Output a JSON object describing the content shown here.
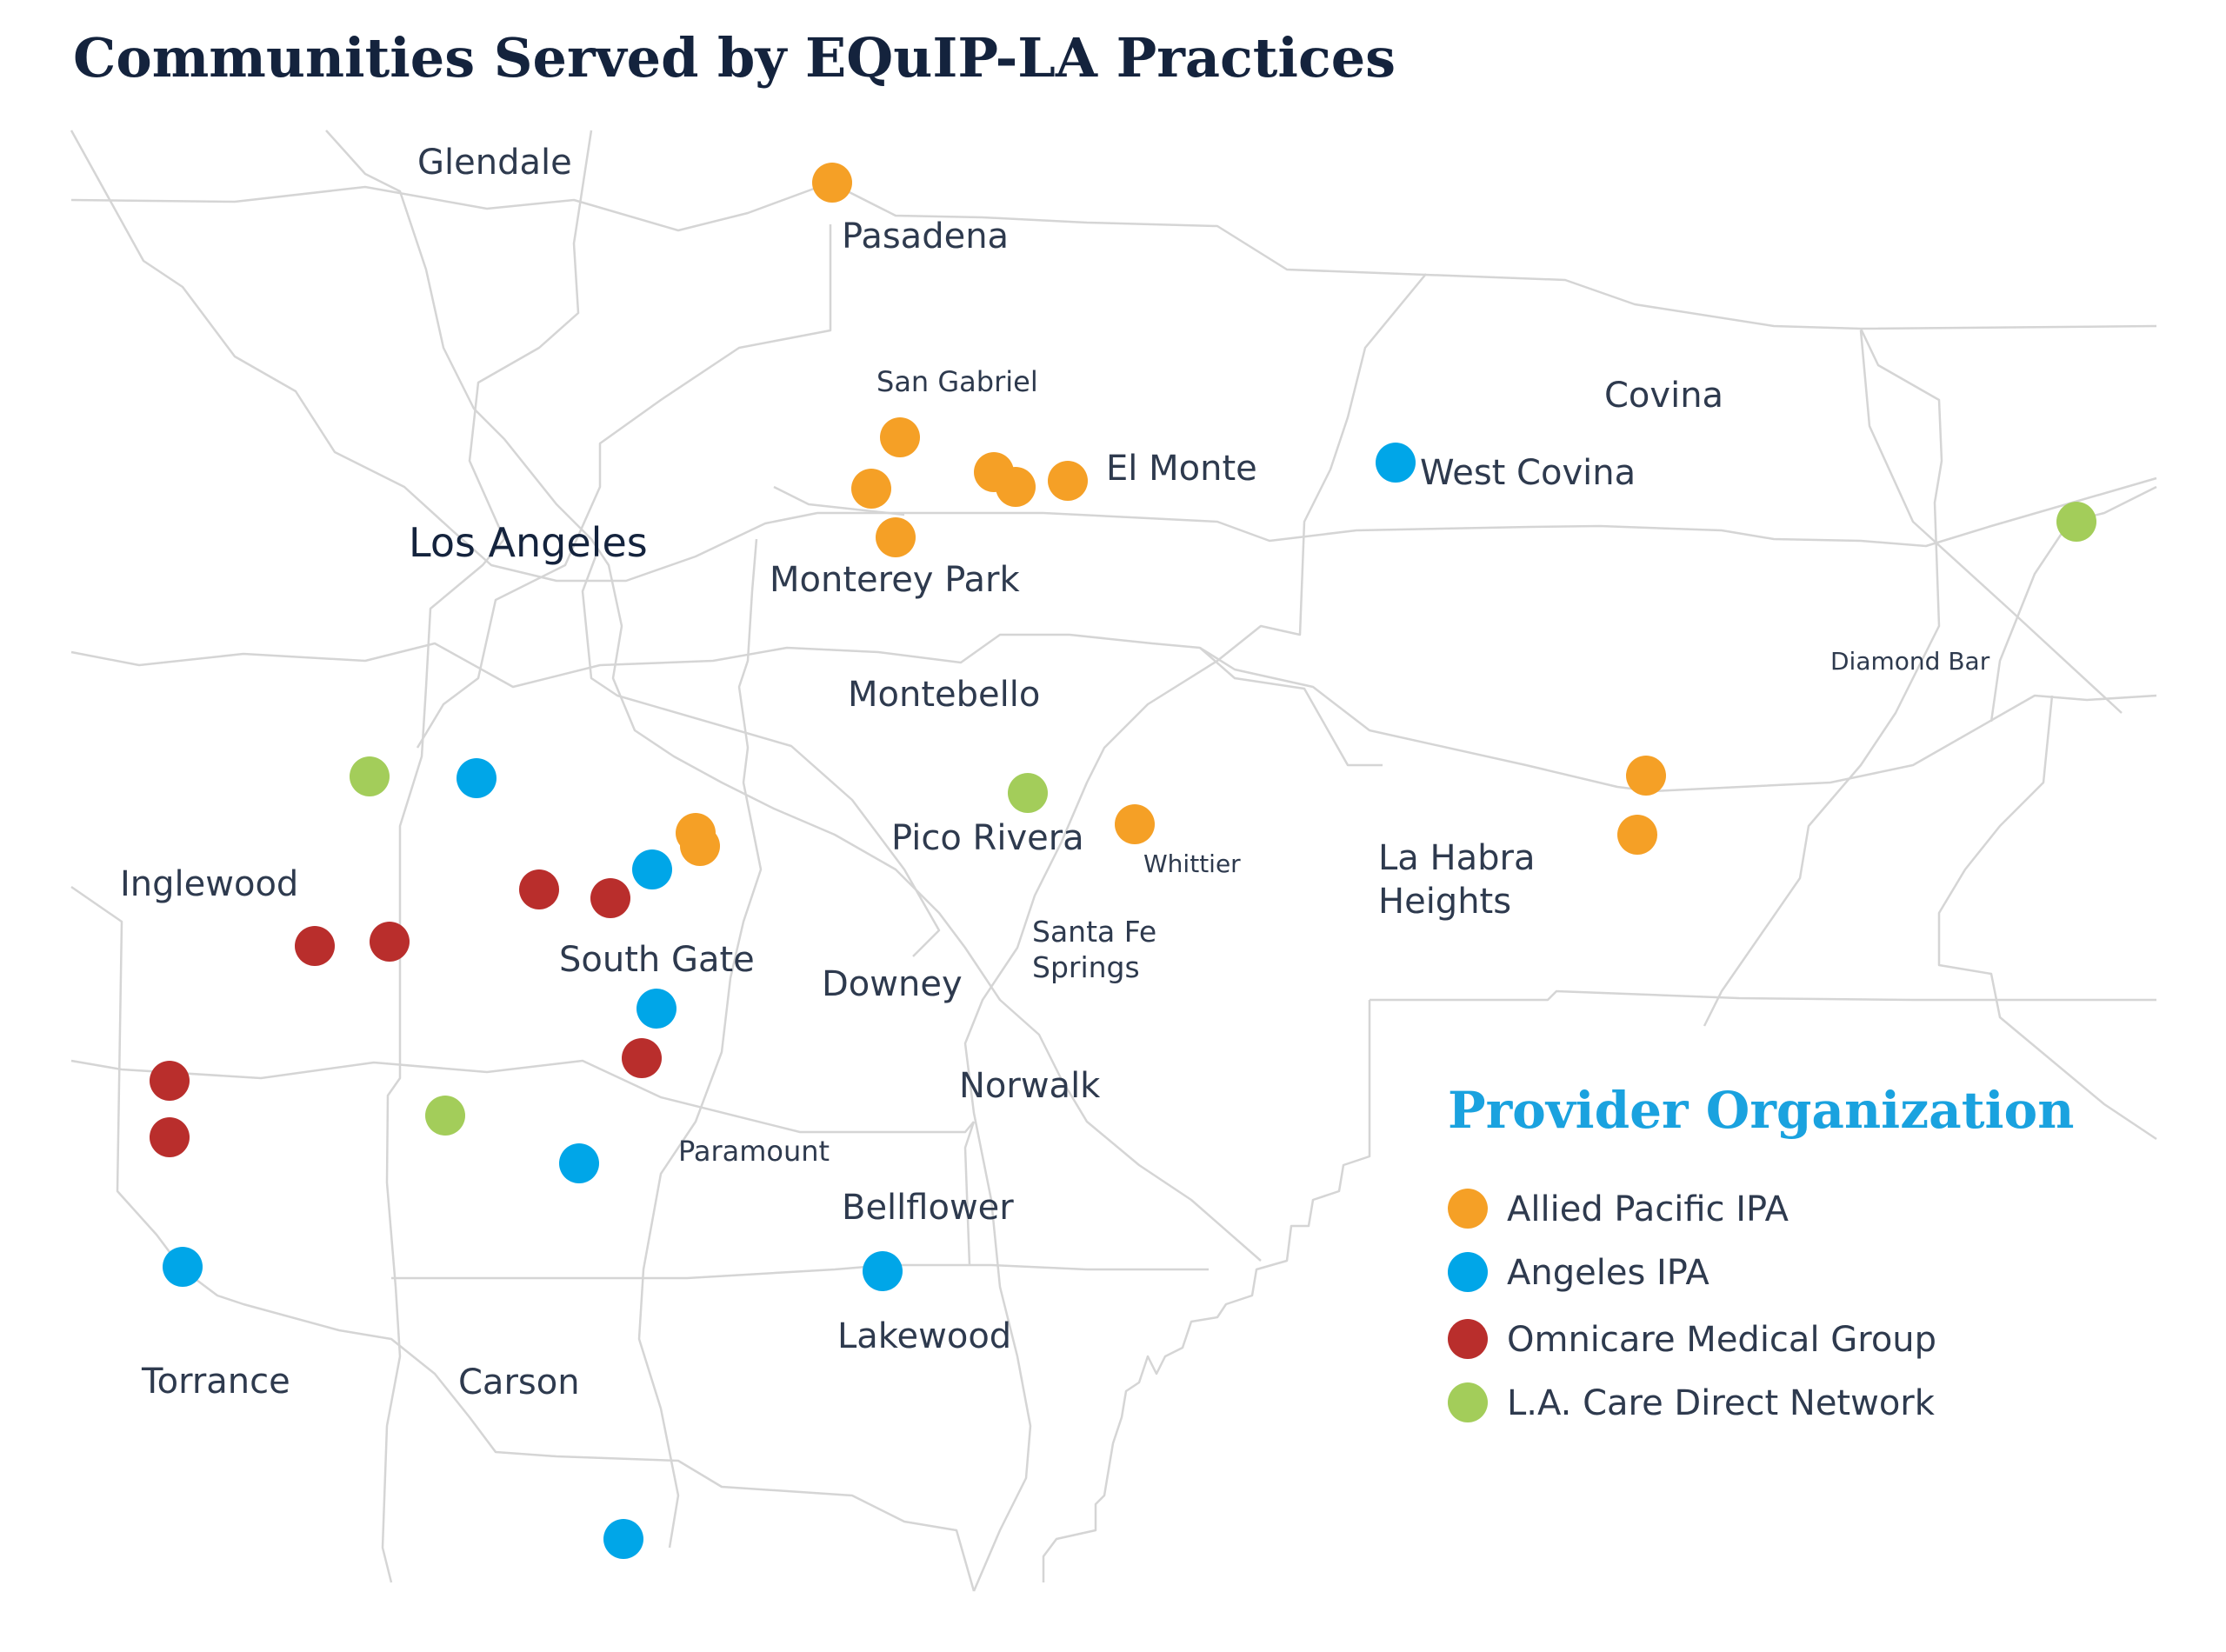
{
  "title": "Communities Served by EQuIP-LA Practices",
  "colors": {
    "allied": "#f5a026",
    "angeles": "#00a6e8",
    "omnicare": "#b92e2c",
    "lacare": "#a3cd5a",
    "legend_title": "#1aa2df"
  },
  "legend": {
    "title": "Provider Organization",
    "items": [
      {
        "label": "Allied Pacific IPA",
        "color_key": "allied"
      },
      {
        "label": "Angeles IPA",
        "color_key": "angeles"
      },
      {
        "label": "Omnicare Medical Group",
        "color_key": "omnicare"
      },
      {
        "label": "L.A. Care Direct Network",
        "color_key": "lacare"
      }
    ]
  },
  "cities": [
    {
      "name": "Glendale"
    },
    {
      "name": "Pasadena"
    },
    {
      "name": "San Gabriel"
    },
    {
      "name": "El Monte"
    },
    {
      "name": "Covina"
    },
    {
      "name": "West Covina"
    },
    {
      "name": "Los Angeles"
    },
    {
      "name": "Monterey Park"
    },
    {
      "name": "Montebello"
    },
    {
      "name": "Diamond Bar"
    },
    {
      "name": "Pico Rivera"
    },
    {
      "name": "Whittier"
    },
    {
      "name": "La Habra"
    },
    {
      "name": "Heights"
    },
    {
      "name": "Inglewood"
    },
    {
      "name": "Santa Fe"
    },
    {
      "name": "Springs"
    },
    {
      "name": "South Gate"
    },
    {
      "name": "Downey"
    },
    {
      "name": "Norwalk"
    },
    {
      "name": "Paramount"
    },
    {
      "name": "Bellflower"
    },
    {
      "name": "Lakewood"
    },
    {
      "name": "Torrance"
    },
    {
      "name": "Carson"
    }
  ],
  "practice_markers": [
    {
      "org": "allied"
    },
    {
      "org": "allied"
    },
    {
      "org": "allied"
    },
    {
      "org": "allied"
    },
    {
      "org": "allied"
    },
    {
      "org": "allied"
    },
    {
      "org": "allied"
    },
    {
      "org": "allied"
    },
    {
      "org": "allied"
    },
    {
      "org": "allied"
    },
    {
      "org": "allied"
    },
    {
      "org": "allied"
    },
    {
      "org": "angeles"
    },
    {
      "org": "angeles"
    },
    {
      "org": "angeles"
    },
    {
      "org": "angeles"
    },
    {
      "org": "angeles"
    },
    {
      "org": "angeles"
    },
    {
      "org": "angeles"
    },
    {
      "org": "angeles"
    },
    {
      "org": "omnicare"
    },
    {
      "org": "omnicare"
    },
    {
      "org": "omnicare"
    },
    {
      "org": "omnicare"
    },
    {
      "org": "omnicare"
    },
    {
      "org": "omnicare"
    },
    {
      "org": "omnicare"
    },
    {
      "org": "lacare"
    },
    {
      "org": "lacare"
    },
    {
      "org": "lacare"
    },
    {
      "org": "lacare"
    }
  ]
}
